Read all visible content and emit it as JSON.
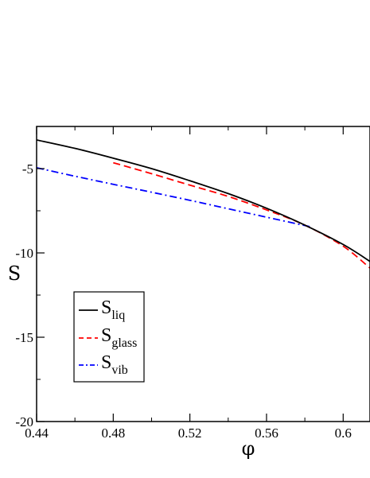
{
  "chart_data": {
    "type": "line",
    "title": "",
    "xlabel": "φ",
    "ylabel": "S",
    "xlim": [
      0.44,
      0.614
    ],
    "ylim": [
      -20,
      -2.5
    ],
    "x_ticks": [
      0.44,
      0.48,
      0.52,
      0.56,
      0.6
    ],
    "x_tick_labels": [
      "0.44",
      "0.48",
      "0.52",
      "0.56",
      "0.6"
    ],
    "y_ticks": [
      -5,
      -10,
      -15,
      -20
    ],
    "y_tick_labels": [
      "-5",
      "-10",
      "-15",
      "-20"
    ],
    "grid": false,
    "legend_position": "lower-left",
    "series": [
      {
        "name": "liq",
        "color": "#000000",
        "dash": "solid",
        "x": [
          0.44,
          0.46,
          0.48,
          0.5,
          0.52,
          0.54,
          0.56,
          0.58,
          0.6,
          0.614
        ],
        "y": [
          -3.3,
          -3.8,
          -4.38,
          -5.0,
          -5.72,
          -6.48,
          -7.35,
          -8.35,
          -9.5,
          -10.5
        ]
      },
      {
        "name": "glass",
        "color": "#ff0000",
        "dash": "dashed",
        "x": [
          0.48,
          0.5,
          0.52,
          0.54,
          0.56,
          0.58,
          0.6,
          0.614
        ],
        "y": [
          -4.65,
          -5.3,
          -5.98,
          -6.65,
          -7.45,
          -8.35,
          -9.6,
          -10.9
        ]
      },
      {
        "name": "vib",
        "color": "#0000ff",
        "dash": "dash-dot",
        "x": [
          0.44,
          0.46,
          0.48,
          0.5,
          0.52,
          0.54,
          0.56,
          0.583
        ],
        "y": [
          -4.95,
          -5.45,
          -5.93,
          -6.4,
          -6.88,
          -7.38,
          -7.88,
          -8.45
        ]
      }
    ]
  },
  "legend": {
    "entries": [
      {
        "main": "S",
        "sub": "liq",
        "color": "#000000",
        "dash": "solid"
      },
      {
        "main": "S",
        "sub": "glass",
        "color": "#ff0000",
        "dash": "dashed"
      },
      {
        "main": "S",
        "sub": "vib",
        "color": "#0000ff",
        "dash": "dash-dot"
      }
    ]
  }
}
